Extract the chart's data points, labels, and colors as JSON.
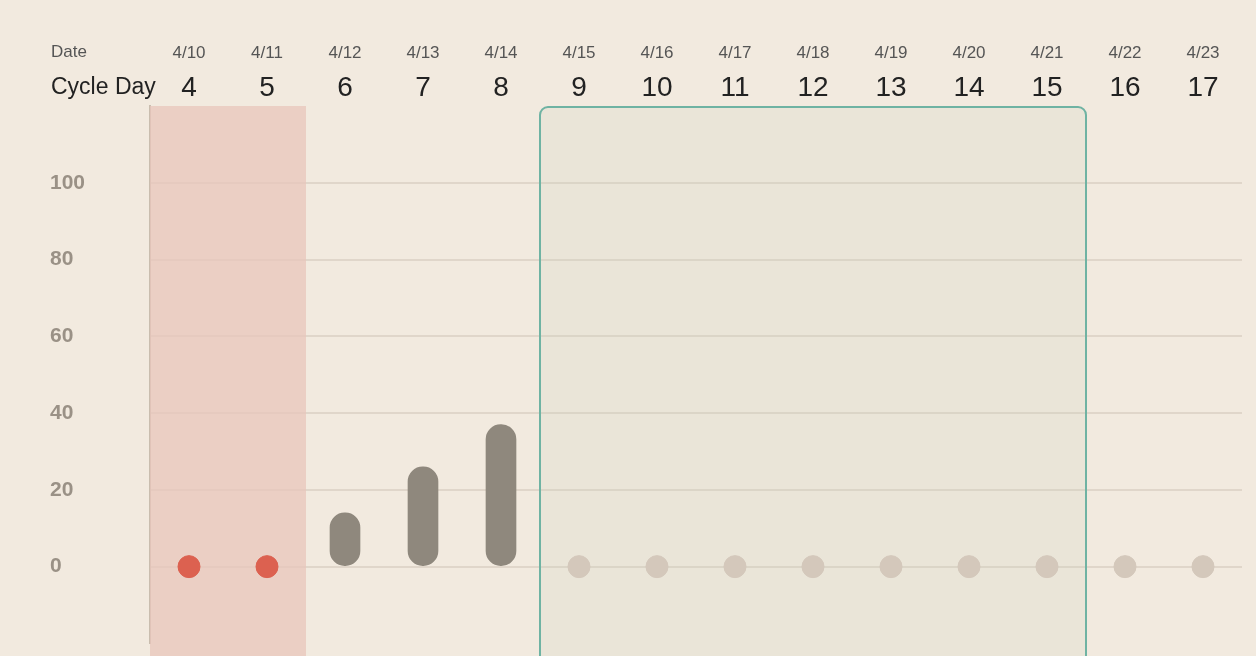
{
  "chart_data": {
    "type": "bar",
    "xlabel": "Date\nCycle Day",
    "categories": [
      "4/10\n4",
      "4/11\n5",
      "4/12\n6",
      "4/13\n7",
      "4/14\n8",
      "4/15\n9",
      "4/16\n10",
      "4/17\n11",
      "4/18\n12",
      "4/19\n13",
      "4/20\n14",
      "4/21\n15",
      "4/22\n16",
      "4/23\n17"
    ],
    "series": [
      {
        "color": "#8f887d",
        "values": [
          null,
          null,
          14,
          26,
          37,
          null,
          null,
          null,
          null,
          null,
          null,
          null,
          null,
          null
        ]
      },
      {
        "type": "scatter",
        "color": "#dc6150",
        "values": [
          0,
          0,
          null,
          null,
          null,
          null,
          null,
          null,
          null,
          null,
          null,
          null,
          null,
          null
        ]
      },
      {
        "type": "scatter",
        "color": "#d4c8bb",
        "values": [
          null,
          null,
          null,
          null,
          null,
          0,
          0,
          0,
          0,
          0,
          0,
          0,
          0,
          0
        ]
      }
    ],
    "ylim": [
      -20,
      120
    ],
    "yticks": [
      0,
      20,
      40,
      60,
      80,
      100
    ],
    "grid": "y",
    "marker": "circle",
    "legend": false,
    "bands": [
      {
        "axis": "x",
        "from": "4/10\n4",
        "to": "4/11\n5",
        "color": "#e8c6bb"
      },
      {
        "axis": "x",
        "from": "4/15\n9",
        "to": "4/21\n15",
        "color": "#6fb3a3"
      }
    ]
  }
}
